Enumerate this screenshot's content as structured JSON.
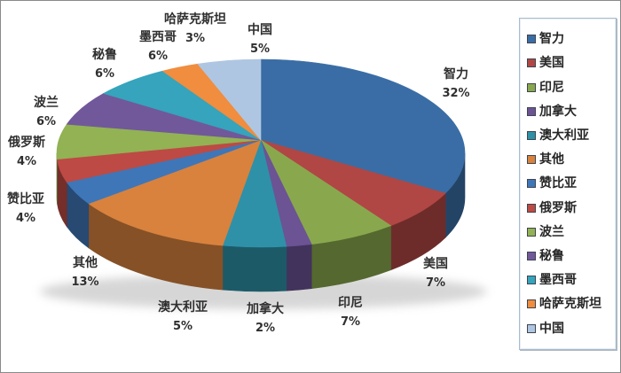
{
  "chart_data": {
    "type": "pie",
    "style": "3d-pie",
    "title": "",
    "legend_position": "right",
    "unit": "%",
    "categories": [
      "智力",
      "美国",
      "印尼",
      "加拿大",
      "澳大利亚",
      "其他",
      "赞比亚",
      "俄罗斯",
      "波兰",
      "秘鲁",
      "墨西哥",
      "哈萨克斯坦",
      "中国"
    ],
    "values": [
      32,
      7,
      7,
      2,
      5,
      13,
      4,
      4,
      6,
      6,
      6,
      3,
      5
    ],
    "data_labels": [
      "智力 32%",
      "美国 7%",
      "印尼 7%",
      "加拿大 2%",
      "澳大利亚 5%",
      "其他 13%",
      "赞比亚 4%",
      "俄罗斯 4%",
      "波兰 6%",
      "秘鲁 6%",
      "墨西哥 6%",
      "哈萨克斯坦 3%",
      "中国 5%"
    ],
    "colors": [
      "#3A6DA5",
      "#B04744",
      "#89A84E",
      "#6B5394",
      "#2E91A8",
      "#D8823E",
      "#3F76B8",
      "#BD4A44",
      "#92B254",
      "#71589A",
      "#35A4BC",
      "#F08D3E",
      "#AFC6E2"
    ],
    "legend_border_color": "#A7BCCF",
    "label_text_color": "#2F2F2F"
  }
}
